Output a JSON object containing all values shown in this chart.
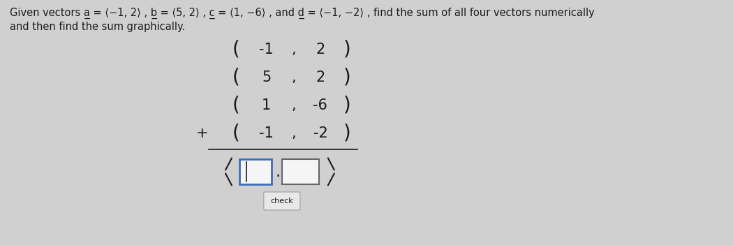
{
  "title_line1": "Given vectors a̲ = ⟨−1, 2⟩ , b̲ = ⟨5, 2⟩ , c̲ = ⟨1, −6⟩ , and d̲ = ⟨−1, −2⟩ , find the sum of all four vectors numerically",
  "title_line2": "and then find the sum graphically.",
  "vectors": [
    [
      "-1",
      "2"
    ],
    [
      "5",
      "2"
    ],
    [
      "1",
      "-6"
    ],
    [
      "-1",
      "-2"
    ]
  ],
  "check_label": "check",
  "bg_color": "#d0d0d0",
  "text_color": "#1a1a1a",
  "box1_color": "#3a6fba",
  "box2_color": "#666666",
  "box_fill": "#f5f5f5",
  "check_fill": "#e8e8e8",
  "check_border": "#aaaaaa",
  "font_size_title": 10.5,
  "font_size_vectors": 15,
  "font_size_bracket": 20,
  "font_size_result_bracket": 22,
  "font_size_check": 8
}
